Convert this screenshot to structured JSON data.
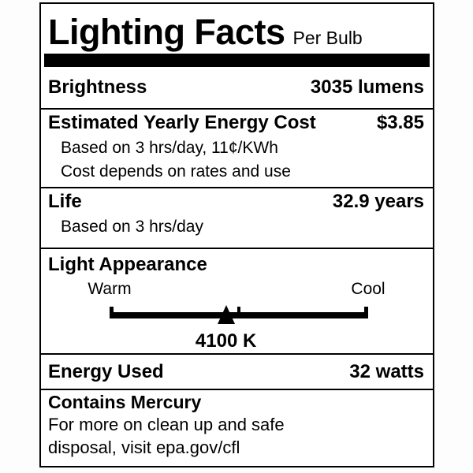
{
  "colors": {
    "ink": "#000000",
    "paper": "#ffffff"
  },
  "label": {
    "title": "Lighting Facts",
    "subtitle": "Per Bulb",
    "brightness": {
      "name": "Brightness",
      "value": "3035 lumens"
    },
    "energy_cost": {
      "name": "Estimated Yearly Energy Cost",
      "value": "$3.85",
      "note1": "Based on 3 hrs/day, 11¢/KWh",
      "note2": "Cost depends on rates and use"
    },
    "life": {
      "name": "Life",
      "value": "32.9 years",
      "note": "Based on 3 hrs/day"
    },
    "light_appearance": {
      "name": "Light Appearance",
      "warm_label": "Warm",
      "cool_label": "Cool",
      "temperature": "4100 K",
      "marker_percent": 45
    },
    "energy_used": {
      "name": "Energy Used",
      "value": "32 watts"
    },
    "mercury": {
      "name": "Contains Mercury",
      "line1": "For more on clean up and safe",
      "line2": "disposal, visit epa.gov/cfl"
    }
  }
}
